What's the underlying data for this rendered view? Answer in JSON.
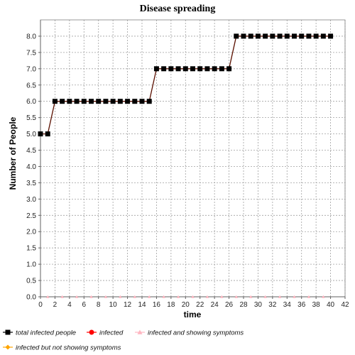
{
  "chart_data": {
    "type": "line",
    "title": "Disease spreading",
    "xlabel": "time",
    "ylabel": "Number of People",
    "xlim": [
      0,
      42
    ],
    "ylim": [
      0,
      8.5
    ],
    "x_ticks": [
      "0",
      "2",
      "4",
      "6",
      "8",
      "10",
      "12",
      "14",
      "16",
      "18",
      "20",
      "22",
      "24",
      "26",
      "28",
      "30",
      "32",
      "34",
      "36",
      "38",
      "40",
      "42"
    ],
    "y_ticks": [
      "0.0",
      "0.5",
      "1.0",
      "1.5",
      "2.0",
      "2.5",
      "3.0",
      "3.5",
      "4.0",
      "4.5",
      "5.0",
      "5.5",
      "6.0",
      "6.5",
      "7.0",
      "7.5",
      "8.0"
    ],
    "grid": true,
    "legend_position": "bottom",
    "series": [
      {
        "name": "total infected people",
        "color": "#000000",
        "line_color": "#5a1000",
        "marker": "square",
        "x": [
          0,
          1,
          2,
          3,
          4,
          5,
          6,
          7,
          8,
          9,
          10,
          11,
          12,
          13,
          14,
          15,
          16,
          17,
          18,
          19,
          20,
          21,
          22,
          23,
          24,
          25,
          26,
          27,
          28,
          29,
          30,
          31,
          32,
          33,
          34,
          35,
          36,
          37,
          38,
          39,
          40
        ],
        "y": [
          5,
          5,
          6,
          6,
          6,
          6,
          6,
          6,
          6,
          6,
          6,
          6,
          6,
          6,
          6,
          6,
          7,
          7,
          7,
          7,
          7,
          7,
          7,
          7,
          7,
          7,
          7,
          8,
          8,
          8,
          8,
          8,
          8,
          8,
          8,
          8,
          8,
          8,
          8,
          8,
          8
        ]
      },
      {
        "name": "infected",
        "color": "#ff0000",
        "marker": "circle",
        "x": [],
        "y": []
      },
      {
        "name": "infected and showing symptoms",
        "color": "#ffb6c1",
        "marker": "triangle",
        "x": [
          1,
          3,
          5,
          7,
          9,
          11,
          13,
          15,
          17,
          19,
          21,
          23,
          25,
          27,
          29,
          31,
          33,
          35,
          37,
          39
        ],
        "y": [
          0,
          0,
          0,
          0,
          0,
          0,
          0,
          0,
          0,
          0,
          0,
          0,
          0,
          0,
          0,
          0,
          0,
          0,
          0,
          0
        ]
      },
      {
        "name": "infected but not showing symptoms",
        "color": "#ffa500",
        "marker": "diamond",
        "x": [],
        "y": []
      }
    ]
  }
}
